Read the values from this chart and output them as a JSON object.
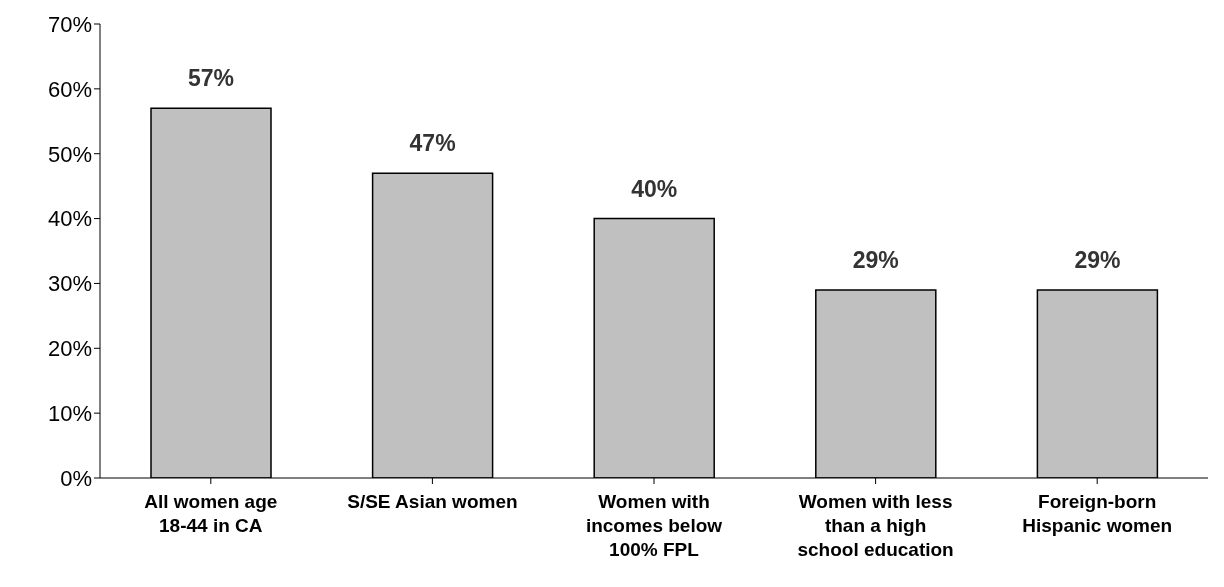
{
  "chart_data": {
    "type": "bar",
    "categories": [
      "All women age 18-44 in CA",
      "S/SE Asian women",
      "Women with incomes below 100% FPL",
      "Women with less than a high school education",
      "Foreign-born Hispanic women"
    ],
    "values": [
      57,
      47,
      40,
      29,
      29
    ],
    "value_labels": [
      "57%",
      "47%",
      "40%",
      "29%",
      "29%"
    ],
    "color": "#c0c0c0",
    "ylim": [
      0,
      70
    ],
    "yticks": [
      {
        "value": 0,
        "label": "0%"
      },
      {
        "value": 10,
        "label": "10%"
      },
      {
        "value": 20,
        "label": "20%"
      },
      {
        "value": 30,
        "label": "30%"
      },
      {
        "value": 40,
        "label": "40%"
      },
      {
        "value": 50,
        "label": "50%"
      },
      {
        "value": 60,
        "label": "60%"
      },
      {
        "value": 70,
        "label": "70%"
      }
    ],
    "grid": false,
    "legend": false
  }
}
